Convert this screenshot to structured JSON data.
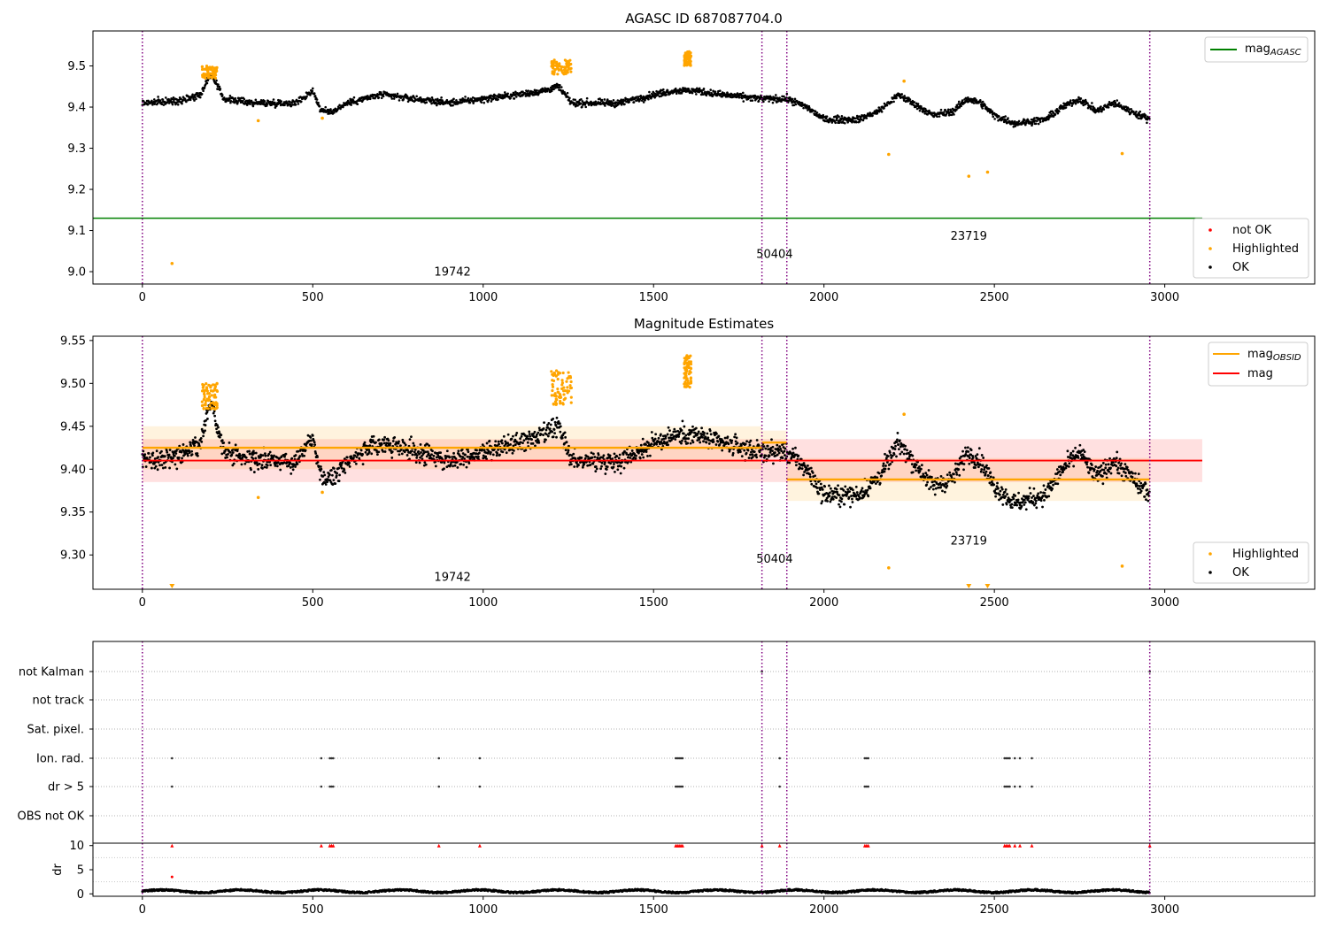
{
  "chart_data": [
    {
      "type": "scatter",
      "title": "AGASC ID 687087704.0",
      "xlim": [
        -145,
        3440
      ],
      "ylim": [
        8.97,
        9.585
      ],
      "x_ticks": [
        0,
        500,
        1000,
        1500,
        2000,
        2500,
        3000
      ],
      "y_ticks": [
        9.0,
        9.1,
        9.2,
        9.3,
        9.4,
        9.5
      ],
      "grid": false,
      "vertical_lines": [
        0,
        1818,
        1891,
        2956
      ],
      "obsid_labels": [
        {
          "text": "19742",
          "x": 910,
          "y": 8.99
        },
        {
          "text": "50404",
          "x": 1855,
          "y": 9.033
        },
        {
          "text": "23719",
          "x": 2425,
          "y": 9.077
        }
      ],
      "mag_agasc": {
        "name": "mag",
        "subscript": "AGASC",
        "value": 9.13,
        "x_range": [
          -145,
          3110
        ],
        "color": "#008000"
      },
      "legend_top": {
        "placement": "top-right",
        "entries": [
          {
            "label": "mag",
            "sub": "AGASC",
            "color": "#008000"
          }
        ]
      },
      "legend_bottom": {
        "placement": "lower-right",
        "entries": [
          {
            "label": "not OK",
            "color": "#ff0000"
          },
          {
            "label": "Highlighted",
            "color": "#ffa500"
          },
          {
            "label": "OK",
            "color": "#000000"
          }
        ]
      },
      "highlight_points": [
        [
          87,
          9.02
        ],
        [
          340,
          9.367
        ],
        [
          528,
          9.373
        ],
        [
          2190,
          9.285
        ],
        [
          2235,
          9.463
        ],
        [
          2425,
          9.232
        ],
        [
          2480,
          9.242
        ],
        [
          2875,
          9.287
        ]
      ],
      "highlight_clusters": [
        {
          "x_range": [
            175,
            220
          ],
          "y_range": [
            9.47,
            9.5
          ]
        },
        {
          "x_range": [
            1200,
            1260
          ],
          "y_range": [
            9.48,
            9.515
          ]
        },
        {
          "x_range": [
            1590,
            1610
          ],
          "y_range": [
            9.5,
            9.535
          ]
        }
      ],
      "ok_baseline": [
        [
          0,
          9.41
        ],
        [
          100,
          9.415
        ],
        [
          170,
          9.43
        ],
        [
          200,
          9.48
        ],
        [
          240,
          9.42
        ],
        [
          330,
          9.41
        ],
        [
          450,
          9.41
        ],
        [
          500,
          9.44
        ],
        [
          525,
          9.39
        ],
        [
          560,
          9.39
        ],
        [
          600,
          9.41
        ],
        [
          700,
          9.43
        ],
        [
          800,
          9.42
        ],
        [
          900,
          9.41
        ],
        [
          1000,
          9.42
        ],
        [
          1100,
          9.43
        ],
        [
          1180,
          9.44
        ],
        [
          1220,
          9.45
        ],
        [
          1260,
          9.41
        ],
        [
          1400,
          9.41
        ],
        [
          1500,
          9.43
        ],
        [
          1560,
          9.44
        ],
        [
          1620,
          9.44
        ],
        [
          1700,
          9.43
        ],
        [
          1818,
          9.42
        ],
        [
          1891,
          9.42
        ],
        [
          1950,
          9.4
        ],
        [
          2000,
          9.37
        ],
        [
          2100,
          9.37
        ],
        [
          2160,
          9.39
        ],
        [
          2220,
          9.43
        ],
        [
          2260,
          9.41
        ],
        [
          2320,
          9.38
        ],
        [
          2380,
          9.39
        ],
        [
          2420,
          9.42
        ],
        [
          2460,
          9.41
        ],
        [
          2500,
          9.38
        ],
        [
          2560,
          9.36
        ],
        [
          2650,
          9.37
        ],
        [
          2700,
          9.4
        ],
        [
          2750,
          9.42
        ],
        [
          2800,
          9.39
        ],
        [
          2850,
          9.41
        ],
        [
          2900,
          9.39
        ],
        [
          2956,
          9.37
        ]
      ]
    },
    {
      "type": "scatter",
      "title": "Magnitude Estimates",
      "xlim": [
        -145,
        3440
      ],
      "ylim": [
        9.26,
        9.555
      ],
      "x_ticks": [
        0,
        500,
        1000,
        1500,
        2000,
        2500,
        3000
      ],
      "y_ticks": [
        9.3,
        9.35,
        9.4,
        9.45,
        9.5,
        9.55
      ],
      "y_tick_labels": [
        "9.30",
        "9.35",
        "9.40",
        "9.45",
        "9.50",
        "9.55"
      ],
      "grid": false,
      "vertical_lines": [
        0,
        1818,
        1891,
        2956
      ],
      "obsid_labels": [
        {
          "text": "19742",
          "x": 910,
          "y": 9.27
        },
        {
          "text": "50404",
          "x": 1855,
          "y": 9.291
        },
        {
          "text": "23719",
          "x": 2425,
          "y": 9.312
        }
      ],
      "mag_line": {
        "name": "mag",
        "value": 9.41,
        "band": [
          9.385,
          9.435
        ],
        "x_range": [
          0,
          3110
        ],
        "color": "#ff0000",
        "band_color": "#ffdfe0"
      },
      "mag_obsid": [
        {
          "x_range": [
            0,
            1818
          ],
          "value": 9.425,
          "band": [
            9.4,
            9.45
          ]
        },
        {
          "x_range": [
            1818,
            1891
          ],
          "value": 9.431,
          "band": [
            9.415,
            9.445
          ]
        },
        {
          "x_range": [
            1891,
            2956
          ],
          "value": 9.388,
          "band": [
            9.363,
            9.413
          ]
        }
      ],
      "legend_top": {
        "placement": "top-right",
        "entries": [
          {
            "label": "mag",
            "sub": "OBSID",
            "color": "#ffa500"
          },
          {
            "label": "mag",
            "sub": "",
            "color": "#ff0000"
          }
        ]
      },
      "legend_bottom": {
        "placement": "lower-right",
        "entries": [
          {
            "label": "Highlighted",
            "color": "#ffa500"
          },
          {
            "label": "OK",
            "color": "#000000"
          }
        ]
      },
      "highlight_points": [
        [
          340,
          9.367
        ],
        [
          528,
          9.373
        ],
        [
          2190,
          9.285
        ],
        [
          2235,
          9.464
        ],
        [
          2875,
          9.287
        ]
      ],
      "highlight_markers": [
        87,
        2425,
        2480
      ],
      "highlight_clusters": [
        {
          "x_range": [
            175,
            220
          ],
          "y_range": [
            9.47,
            9.5
          ]
        },
        {
          "x_range": [
            1200,
            1260
          ],
          "y_range": [
            9.475,
            9.515
          ]
        },
        {
          "x_range": [
            1590,
            1610
          ],
          "y_range": [
            9.495,
            9.533
          ]
        }
      ]
    },
    {
      "type": "scatter",
      "title": "",
      "xlim": [
        -145,
        3440
      ],
      "x_ticks": [
        0,
        500,
        1000,
        1500,
        2000,
        2500,
        3000
      ],
      "categories": [
        "not Kalman",
        "not track",
        "Sat. pixel.",
        "Ion. rad.",
        "dr > 5",
        "OBS not OK"
      ],
      "vertical_lines": [
        0,
        1818,
        1891,
        2956
      ],
      "flag_points": {
        "not Kalman": [
          1818,
          2956
        ],
        "Ion. rad.": [
          87,
          525,
          550,
          555,
          560,
          870,
          990,
          1565,
          1570,
          1575,
          1580,
          1585,
          1870,
          2120,
          2125,
          2130,
          2530,
          2535,
          2540,
          2545,
          2560,
          2575,
          2610
        ],
        "dr > 5": [
          87,
          525,
          550,
          555,
          560,
          870,
          990,
          1565,
          1570,
          1575,
          1580,
          1585,
          1870,
          2120,
          2125,
          2130,
          2530,
          2535,
          2540,
          2545,
          2560,
          2575,
          2610
        ]
      },
      "dr_panel": {
        "ylabel": "dr",
        "ylim": [
          -0.5,
          10.5
        ],
        "y_ticks": [
          0,
          5,
          10
        ],
        "clip_value": 10,
        "clipped_x": [
          87,
          525,
          550,
          555,
          560,
          870,
          990,
          1565,
          1570,
          1575,
          1580,
          1585,
          1818,
          1870,
          2120,
          2125,
          2130,
          2530,
          2535,
          2540,
          2545,
          2560,
          2575,
          2610,
          2956
        ],
        "other_red": [
          [
            87,
            3.5
          ]
        ],
        "baseline_range": [
          0.1,
          1.0
        ]
      }
    }
  ]
}
